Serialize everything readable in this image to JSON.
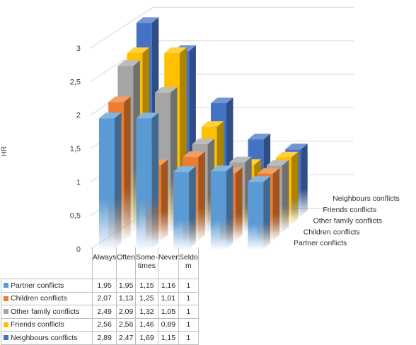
{
  "chart_data": {
    "type": "bar",
    "ylabel": "HR",
    "ylim": [
      0,
      3
    ],
    "y_ticks": [
      "0",
      "0,5",
      "1",
      "1,5",
      "2",
      "2,5",
      "3"
    ],
    "categories": [
      "Always",
      "Often",
      "Some-times",
      "Never",
      "Seldom"
    ],
    "category_lines": [
      [
        "Always"
      ],
      [
        "Often"
      ],
      [
        "Some-",
        "times"
      ],
      [
        "Never"
      ],
      [
        "Seldo",
        "m"
      ]
    ],
    "series": [
      {
        "name": "Partner conflicts",
        "values": [
          1.95,
          1.95,
          1.15,
          1.16,
          1
        ],
        "display": [
          "1,95",
          "1,95",
          "1,15",
          "1,16",
          "1"
        ],
        "color": "#5b9bd5"
      },
      {
        "name": "Children conflicts",
        "values": [
          2.07,
          1.13,
          1.25,
          1.01,
          1
        ],
        "display": [
          "2,07",
          "1,13",
          "1,25",
          "1,01",
          "1"
        ],
        "color": "#ed7d31"
      },
      {
        "name": "Other family conflicts",
        "values": [
          2.49,
          2.09,
          1.32,
          1.05,
          1
        ],
        "display": [
          "2,49",
          "2,09",
          "1,32",
          "1,05",
          "1"
        ],
        "color": "#a5a5a5"
      },
      {
        "name": "Friends conflicts",
        "values": [
          2.56,
          2.56,
          1.46,
          0.89,
          1
        ],
        "display": [
          "2,56",
          "2,56",
          "1,46",
          "0,89",
          "1"
        ],
        "color": "#ffc000"
      },
      {
        "name": "Neighbours conflicts",
        "values": [
          2.89,
          2.47,
          1.69,
          1.15,
          1
        ],
        "display": [
          "2,89",
          "2,47",
          "1,69",
          "1,15",
          "1"
        ],
        "color": "#4472c4"
      }
    ],
    "grid": true,
    "legend": "data-table"
  }
}
